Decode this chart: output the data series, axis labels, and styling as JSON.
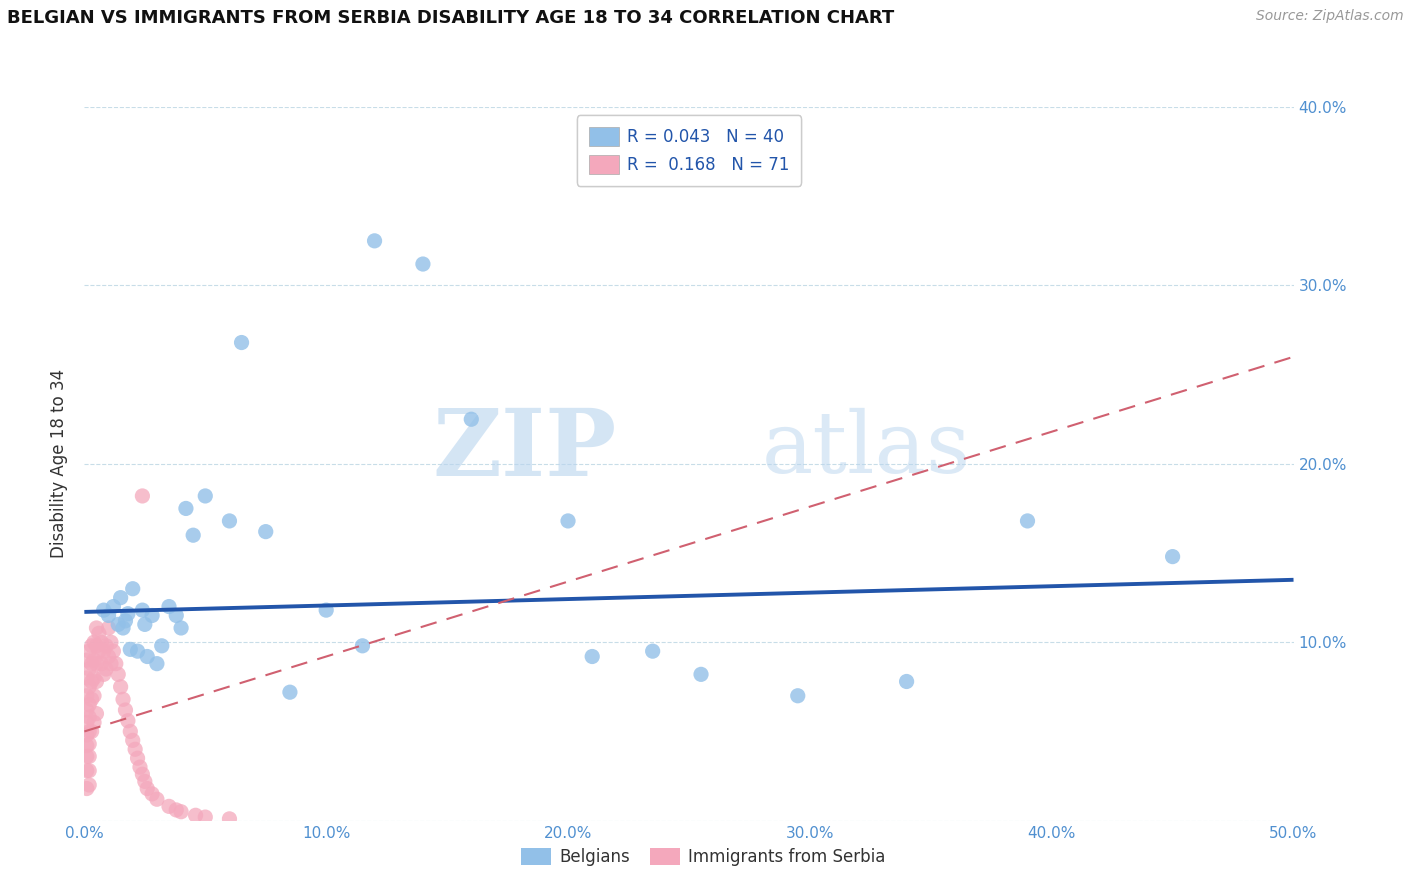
{
  "title": "BELGIAN VS IMMIGRANTS FROM SERBIA DISABILITY AGE 18 TO 34 CORRELATION CHART",
  "source": "Source: ZipAtlas.com",
  "ylabel": "Disability Age 18 to 34",
  "xlim": [
    0.0,
    0.5
  ],
  "ylim": [
    0.0,
    0.4
  ],
  "xticks": [
    0.0,
    0.1,
    0.2,
    0.3,
    0.4,
    0.5
  ],
  "yticks": [
    0.0,
    0.1,
    0.2,
    0.3,
    0.4
  ],
  "xticklabels": [
    "0.0%",
    "10.0%",
    "20.0%",
    "30.0%",
    "40.0%",
    "50.0%"
  ],
  "yticklabels": [
    "",
    "10.0%",
    "20.0%",
    "30.0%",
    "40.0%"
  ],
  "watermark_zip": "ZIP",
  "watermark_atlas": "atlas",
  "belgian_color": "#92c0e8",
  "serbian_color": "#f4a8bc",
  "belgian_line_color": "#2255aa",
  "serbian_line_color": "#d06070",
  "belgian_r": 0.043,
  "serbian_r": 0.168,
  "belgian_n": 40,
  "serbian_n": 71,
  "belgians_x": [
    0.008,
    0.01,
    0.012,
    0.014,
    0.015,
    0.016,
    0.017,
    0.018,
    0.019,
    0.02,
    0.022,
    0.024,
    0.025,
    0.026,
    0.028,
    0.03,
    0.032,
    0.035,
    0.038,
    0.04,
    0.042,
    0.045,
    0.05,
    0.06,
    0.065,
    0.075,
    0.085,
    0.1,
    0.115,
    0.12,
    0.14,
    0.16,
    0.2,
    0.21,
    0.235,
    0.255,
    0.295,
    0.34,
    0.39,
    0.45
  ],
  "belgians_y": [
    0.118,
    0.115,
    0.12,
    0.11,
    0.125,
    0.108,
    0.112,
    0.116,
    0.096,
    0.13,
    0.095,
    0.118,
    0.11,
    0.092,
    0.115,
    0.088,
    0.098,
    0.12,
    0.115,
    0.108,
    0.175,
    0.16,
    0.182,
    0.168,
    0.268,
    0.162,
    0.072,
    0.118,
    0.098,
    0.325,
    0.312,
    0.225,
    0.168,
    0.092,
    0.095,
    0.082,
    0.07,
    0.078,
    0.168,
    0.148
  ],
  "serbians_x": [
    0.001,
    0.001,
    0.001,
    0.001,
    0.001,
    0.001,
    0.001,
    0.001,
    0.001,
    0.001,
    0.002,
    0.002,
    0.002,
    0.002,
    0.002,
    0.002,
    0.002,
    0.002,
    0.002,
    0.002,
    0.003,
    0.003,
    0.003,
    0.003,
    0.003,
    0.004,
    0.004,
    0.004,
    0.004,
    0.004,
    0.005,
    0.005,
    0.005,
    0.005,
    0.005,
    0.006,
    0.006,
    0.007,
    0.007,
    0.008,
    0.008,
    0.009,
    0.009,
    0.01,
    0.01,
    0.011,
    0.011,
    0.012,
    0.013,
    0.014,
    0.015,
    0.016,
    0.017,
    0.018,
    0.019,
    0.02,
    0.021,
    0.022,
    0.023,
    0.024,
    0.025,
    0.026,
    0.028,
    0.03,
    0.035,
    0.038,
    0.04,
    0.046,
    0.05,
    0.06,
    0.024
  ],
  "serbians_y": [
    0.09,
    0.08,
    0.07,
    0.062,
    0.055,
    0.048,
    0.042,
    0.036,
    0.028,
    0.018,
    0.095,
    0.085,
    0.075,
    0.065,
    0.058,
    0.05,
    0.043,
    0.036,
    0.028,
    0.02,
    0.098,
    0.088,
    0.078,
    0.068,
    0.05,
    0.1,
    0.09,
    0.08,
    0.07,
    0.055,
    0.108,
    0.098,
    0.088,
    0.078,
    0.06,
    0.105,
    0.095,
    0.1,
    0.088,
    0.095,
    0.082,
    0.098,
    0.085,
    0.108,
    0.092,
    0.1,
    0.088,
    0.095,
    0.088,
    0.082,
    0.075,
    0.068,
    0.062,
    0.056,
    0.05,
    0.045,
    0.04,
    0.035,
    0.03,
    0.026,
    0.022,
    0.018,
    0.015,
    0.012,
    0.008,
    0.006,
    0.005,
    0.003,
    0.002,
    0.001,
    0.182
  ],
  "belgian_line_x0": 0.0,
  "belgian_line_x1": 0.5,
  "belgian_line_y0": 0.117,
  "belgian_line_y1": 0.135,
  "serbian_line_x0": 0.0,
  "serbian_line_x1": 0.5,
  "serbian_line_y0": 0.05,
  "serbian_line_y1": 0.26
}
